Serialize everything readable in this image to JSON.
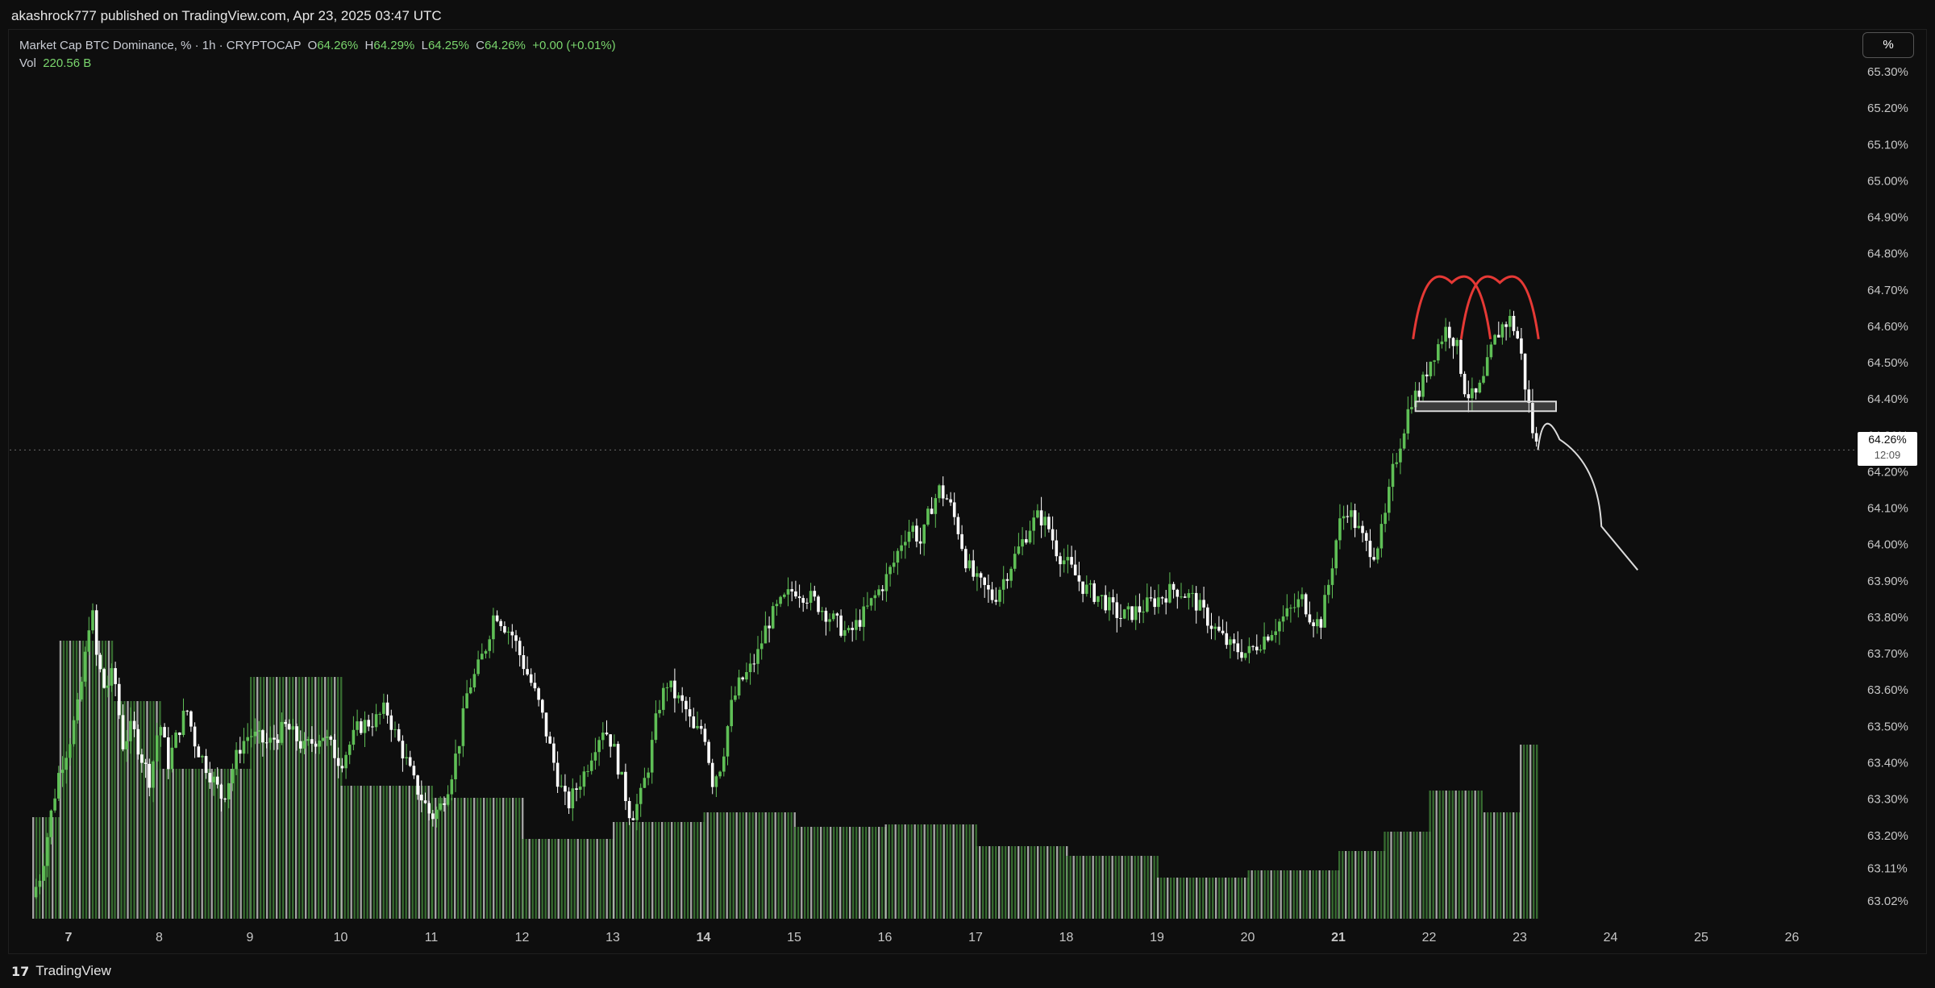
{
  "header": {
    "published": "akashrock777 published on TradingView.com, Apr 23, 2025 03:47 UTC"
  },
  "legend": {
    "symbol": "Market Cap BTC Dominance, % · 1h · CRYPTOCAP",
    "o_label": "O",
    "o_value": "64.26%",
    "h_label": "H",
    "h_value": "64.29%",
    "l_label": "L",
    "l_value": "64.25%",
    "c_label": "C",
    "c_value": "64.26%",
    "change": "+0.00 (+0.01%)",
    "vol_label": "Vol",
    "vol_value": "220.56 B"
  },
  "toolbar": {
    "scale_button": "%"
  },
  "price_label": {
    "value": "64.26%",
    "countdown": "12:09"
  },
  "footer": {
    "logo_text": "17",
    "brand": "TradingView"
  },
  "colors": {
    "up": "#5fbf56",
    "down": "#ffffff",
    "pattern": "#e53935",
    "projection": "#dcdcdc",
    "background": "#0e0e0e"
  },
  "chart_data": {
    "type": "candlestick",
    "symbol": "CRYPTOCAP:BTC.D",
    "interval": "1h",
    "ylim": [
      62.98,
      65.35
    ],
    "y_tick_labels": [
      "63.02%",
      "63.11%",
      "63.20%",
      "63.30%",
      "63.40%",
      "63.50%",
      "63.60%",
      "63.70%",
      "63.80%",
      "63.90%",
      "64.00%",
      "64.10%",
      "64.20%",
      "64.30%",
      "64.40%",
      "64.50%",
      "64.60%",
      "64.70%",
      "64.80%",
      "64.90%",
      "65.00%",
      "65.10%",
      "65.20%",
      "65.30%"
    ],
    "y_tick_values": [
      63.02,
      63.11,
      63.2,
      63.3,
      63.4,
      63.5,
      63.6,
      63.7,
      63.8,
      63.9,
      64.0,
      64.1,
      64.2,
      64.3,
      64.4,
      64.5,
      64.6,
      64.7,
      64.8,
      64.9,
      65.0,
      65.1,
      65.2,
      65.3
    ],
    "x_tick_labels": [
      "7",
      "8",
      "9",
      "10",
      "11",
      "12",
      "13",
      "14",
      "15",
      "16",
      "17",
      "18",
      "19",
      "20",
      "21",
      "22",
      "23",
      "24",
      "25",
      "26"
    ],
    "x_tick_bold": [
      "7",
      "14",
      "21"
    ],
    "x_day_start": 6.6,
    "x_day_end": 26.8,
    "price_path": [
      [
        6.6,
        63.03
      ],
      [
        6.7,
        63.1
      ],
      [
        6.8,
        63.25
      ],
      [
        6.9,
        63.38
      ],
      [
        7.0,
        63.45
      ],
      [
        7.1,
        63.55
      ],
      [
        7.2,
        63.72
      ],
      [
        7.25,
        63.85
      ],
      [
        7.3,
        63.7
      ],
      [
        7.4,
        63.6
      ],
      [
        7.5,
        63.65
      ],
      [
        7.6,
        63.45
      ],
      [
        7.7,
        63.5
      ],
      [
        7.8,
        63.42
      ],
      [
        7.9,
        63.35
      ],
      [
        8.0,
        63.52
      ],
      [
        8.1,
        63.4
      ],
      [
        8.2,
        63.48
      ],
      [
        8.3,
        63.55
      ],
      [
        8.4,
        63.45
      ],
      [
        8.5,
        63.4
      ],
      [
        8.6,
        63.35
      ],
      [
        8.7,
        63.3
      ],
      [
        8.8,
        63.38
      ],
      [
        8.9,
        63.45
      ],
      [
        9.0,
        63.48
      ],
      [
        9.2,
        63.45
      ],
      [
        9.4,
        63.5
      ],
      [
        9.6,
        63.44
      ],
      [
        9.8,
        63.48
      ],
      [
        10.0,
        63.4
      ],
      [
        10.2,
        63.5
      ],
      [
        10.4,
        63.52
      ],
      [
        10.5,
        63.55
      ],
      [
        10.6,
        63.48
      ],
      [
        10.7,
        63.42
      ],
      [
        10.8,
        63.35
      ],
      [
        10.9,
        63.3
      ],
      [
        11.0,
        63.25
      ],
      [
        11.1,
        63.28
      ],
      [
        11.2,
        63.35
      ],
      [
        11.3,
        63.45
      ],
      [
        11.4,
        63.6
      ],
      [
        11.5,
        63.65
      ],
      [
        11.6,
        63.72
      ],
      [
        11.7,
        63.82
      ],
      [
        11.8,
        63.78
      ],
      [
        11.9,
        63.75
      ],
      [
        12.0,
        63.68
      ],
      [
        12.1,
        63.62
      ],
      [
        12.2,
        63.55
      ],
      [
        12.3,
        63.45
      ],
      [
        12.4,
        63.35
      ],
      [
        12.5,
        63.28
      ],
      [
        12.6,
        63.33
      ],
      [
        12.7,
        63.38
      ],
      [
        12.8,
        63.45
      ],
      [
        12.9,
        63.5
      ],
      [
        13.0,
        63.45
      ],
      [
        13.1,
        63.35
      ],
      [
        13.2,
        63.25
      ],
      [
        13.3,
        63.3
      ],
      [
        13.4,
        63.4
      ],
      [
        13.5,
        63.55
      ],
      [
        13.6,
        63.62
      ],
      [
        13.7,
        63.58
      ],
      [
        13.8,
        63.55
      ],
      [
        13.9,
        63.48
      ],
      [
        14.0,
        63.5
      ],
      [
        14.1,
        63.35
      ],
      [
        14.2,
        63.4
      ],
      [
        14.3,
        63.55
      ],
      [
        14.4,
        63.62
      ],
      [
        14.5,
        63.65
      ],
      [
        14.6,
        63.7
      ],
      [
        14.7,
        63.78
      ],
      [
        14.8,
        63.82
      ],
      [
        14.9,
        63.85
      ],
      [
        15.0,
        63.88
      ],
      [
        15.2,
        63.85
      ],
      [
        15.4,
        63.8
      ],
      [
        15.6,
        63.75
      ],
      [
        15.8,
        63.82
      ],
      [
        16.0,
        63.9
      ],
      [
        16.1,
        63.95
      ],
      [
        16.2,
        64.02
      ],
      [
        16.3,
        64.05
      ],
      [
        16.4,
        64.0
      ],
      [
        16.5,
        64.1
      ],
      [
        16.6,
        64.15
      ],
      [
        16.7,
        64.12
      ],
      [
        16.8,
        64.05
      ],
      [
        16.9,
        63.95
      ],
      [
        17.0,
        63.9
      ],
      [
        17.1,
        63.88
      ],
      [
        17.2,
        63.85
      ],
      [
        17.3,
        63.9
      ],
      [
        17.4,
        63.95
      ],
      [
        17.5,
        64.0
      ],
      [
        17.6,
        64.05
      ],
      [
        17.7,
        64.08
      ],
      [
        17.8,
        64.05
      ],
      [
        17.9,
        63.98
      ],
      [
        18.0,
        63.95
      ],
      [
        18.2,
        63.88
      ],
      [
        18.4,
        63.85
      ],
      [
        18.6,
        63.8
      ],
      [
        18.8,
        63.82
      ],
      [
        19.0,
        63.85
      ],
      [
        19.2,
        63.88
      ],
      [
        19.4,
        63.85
      ],
      [
        19.6,
        63.78
      ],
      [
        19.8,
        63.72
      ],
      [
        20.0,
        63.7
      ],
      [
        20.2,
        63.75
      ],
      [
        20.4,
        63.8
      ],
      [
        20.6,
        63.85
      ],
      [
        20.7,
        63.8
      ],
      [
        20.8,
        63.78
      ],
      [
        20.9,
        63.9
      ],
      [
        21.0,
        64.05
      ],
      [
        21.1,
        64.1
      ],
      [
        21.2,
        64.05
      ],
      [
        21.3,
        64.0
      ],
      [
        21.4,
        63.98
      ],
      [
        21.5,
        64.05
      ],
      [
        21.6,
        64.2
      ],
      [
        21.7,
        64.3
      ],
      [
        21.8,
        64.4
      ],
      [
        21.9,
        64.42
      ],
      [
        22.0,
        64.5
      ],
      [
        22.1,
        64.55
      ],
      [
        22.2,
        64.6
      ],
      [
        22.3,
        64.55
      ],
      [
        22.4,
        64.42
      ],
      [
        22.5,
        64.4
      ],
      [
        22.6,
        64.45
      ],
      [
        22.7,
        64.55
      ],
      [
        22.8,
        64.6
      ],
      [
        22.9,
        64.62
      ],
      [
        23.0,
        64.55
      ],
      [
        23.05,
        64.45
      ],
      [
        23.1,
        64.38
      ],
      [
        23.15,
        64.3
      ],
      [
        23.2,
        64.26
      ]
    ],
    "volume_profile": [
      [
        6.6,
        6.9,
        0.42
      ],
      [
        6.9,
        7.5,
        1.15
      ],
      [
        7.5,
        8.0,
        0.9
      ],
      [
        8.0,
        9.0,
        0.62
      ],
      [
        9.0,
        10.0,
        1.0
      ],
      [
        10.0,
        11.0,
        0.55
      ],
      [
        11.0,
        12.0,
        0.5
      ],
      [
        12.0,
        13.0,
        0.33
      ],
      [
        13.0,
        14.0,
        0.4
      ],
      [
        14.0,
        15.0,
        0.44
      ],
      [
        15.0,
        16.0,
        0.38
      ],
      [
        16.0,
        17.0,
        0.39
      ],
      [
        17.0,
        18.0,
        0.3
      ],
      [
        18.0,
        19.0,
        0.26
      ],
      [
        19.0,
        20.0,
        0.17
      ],
      [
        20.0,
        21.0,
        0.2
      ],
      [
        21.0,
        21.5,
        0.28
      ],
      [
        21.5,
        22.0,
        0.36
      ],
      [
        22.0,
        22.6,
        0.53
      ],
      [
        22.6,
        23.0,
        0.44
      ],
      [
        23.0,
        23.2,
        0.72
      ]
    ],
    "annotations": {
      "double_top": [
        {
          "x_center": 22.25,
          "y_top": 64.72
        },
        {
          "x_center": 22.78,
          "y_top": 64.72
        }
      ],
      "neckline": {
        "x_start": 21.85,
        "x_end": 23.4,
        "y": 64.38
      },
      "projection": [
        [
          23.2,
          64.26
        ],
        [
          23.35,
          64.3
        ],
        [
          23.6,
          64.22
        ],
        [
          23.9,
          64.05
        ],
        [
          24.3,
          63.93
        ]
      ],
      "current_price": 64.26
    }
  }
}
